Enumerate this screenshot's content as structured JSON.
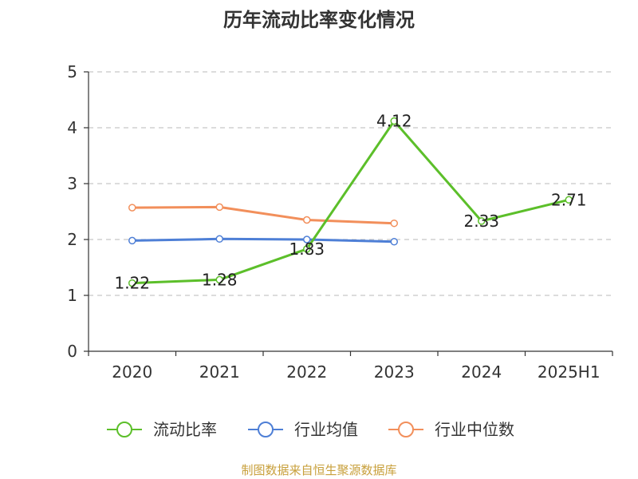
{
  "chart_data": {
    "type": "line",
    "title": "历年流动比率变化情况",
    "categories": [
      "2020",
      "2021",
      "2022",
      "2023",
      "2024",
      "2025H1"
    ],
    "ylim": [
      0,
      5
    ],
    "yticks": [
      "0",
      "1",
      "2",
      "3",
      "4",
      "5"
    ],
    "grid": true,
    "legend_position": "bottom",
    "series": [
      {
        "name": "流动比率",
        "color": "#5cbf2a",
        "values": [
          1.22,
          1.28,
          1.83,
          4.12,
          2.33,
          2.71
        ],
        "labels": [
          "1.22",
          "1.28",
          "1.83",
          "4.12",
          "2.33",
          "2.71"
        ]
      },
      {
        "name": "行业均值",
        "color": "#4e7fd6",
        "values": [
          1.98,
          2.01,
          2.0,
          1.96,
          null,
          null
        ]
      },
      {
        "name": "行业中位数",
        "color": "#f28f5b",
        "values": [
          2.57,
          2.58,
          2.35,
          2.29,
          null,
          null
        ]
      }
    ],
    "source": "制图数据来自恒生聚源数据库"
  }
}
